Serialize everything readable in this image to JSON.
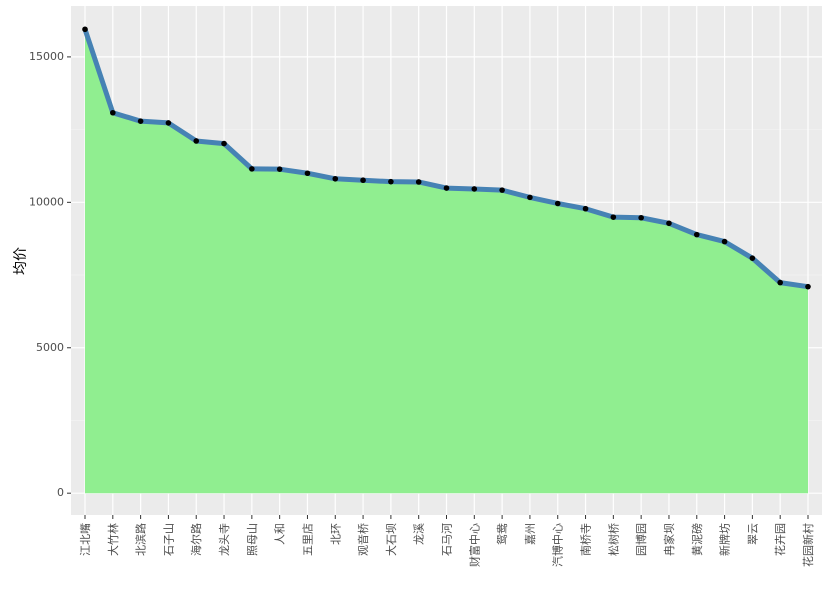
{
  "chart_data": {
    "type": "area",
    "title": "",
    "xlabel": "",
    "ylabel": "均价",
    "categories": [
      "江北嘴",
      "大竹林",
      "北滨路",
      "石子山",
      "海尔路",
      "龙头寺",
      "照母山",
      "人和",
      "五里店",
      "北环",
      "观音桥",
      "大石坝",
      "龙溪",
      "石马河",
      "财富中心",
      "鸳鸯",
      "嘉州",
      "汽博中心",
      "南桥寺",
      "松树桥",
      "园博园",
      "冉家坝",
      "黄泥磅",
      "新牌坊",
      "翠云",
      "花卉园",
      "花园新村"
    ],
    "values": [
      15950,
      13080,
      12790,
      12730,
      12110,
      12020,
      11150,
      11140,
      11000,
      10810,
      10760,
      10710,
      10700,
      10490,
      10460,
      10420,
      10170,
      9960,
      9780,
      9490,
      9470,
      9280,
      8890,
      8650,
      8080,
      7240,
      7100
    ],
    "ylim": [
      -750,
      16750
    ],
    "yticks": [
      0,
      5000,
      10000,
      15000
    ],
    "ytick_labels": [
      "0",
      "5000",
      "10000",
      "15000"
    ],
    "grid": true,
    "colors": {
      "fill": "#90ee90",
      "line": "#4682b4",
      "point": "#000000",
      "panel": "#ebebeb",
      "grid": "#ffffff"
    }
  }
}
